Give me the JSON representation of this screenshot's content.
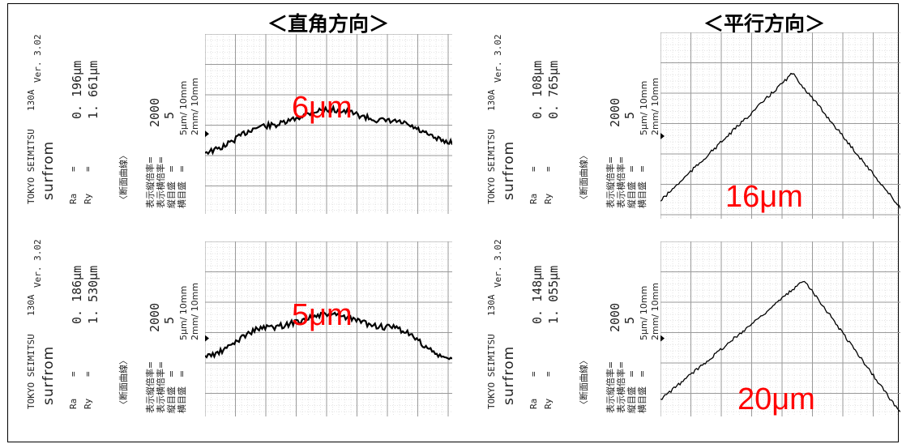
{
  "headings": {
    "left": "＜直角方向＞",
    "right": "＜平行方向＞"
  },
  "colors": {
    "annotation": "#ff0000",
    "grid": "#9a9a9a",
    "trace": "#000000"
  },
  "panels": [
    {
      "id": "perp-top",
      "header": {
        "maker": "TOKYO SEIMITSU",
        "model": "130A",
        "brand": "surfrom",
        "version": "Ver. 3.02"
      },
      "params": {
        "ra_label": "Ra",
        "ry_label": "Ry",
        "eq": "=",
        "ra_value": "0. 196μm",
        "ry_value": "1. 661μm"
      },
      "curve": {
        "title": "〈断面曲線〉",
        "vmag_label": "表示縦倍率=",
        "hmag_label": "表示横倍率=",
        "vscale_label": "縦目盛　=",
        "hscale_label": "横目盛　=",
        "vmag_value": "2000",
        "hmag_value": "5",
        "vscale_value": "5μm/ 10mm",
        "hscale_value": "2mm/ 10mm"
      },
      "annotation": "6μm",
      "chart_data": {
        "type": "line",
        "profile": "arch",
        "peak_height_um": 6,
        "x": [
          0,
          0.25,
          0.5,
          0.75,
          1.0
        ],
        "y": [
          0.35,
          0.75,
          1.0,
          0.82,
          0.5
        ]
      }
    },
    {
      "id": "par-top",
      "header": {
        "maker": "TOKYO SEIMITSU",
        "model": "130A",
        "brand": "surfrom",
        "version": "Ver. 3.02"
      },
      "params": {
        "ra_label": "Ra",
        "ry_label": "Ry",
        "eq": "=",
        "ra_value": "0. 108μm",
        "ry_value": "0. 765μm"
      },
      "curve": {
        "title": "〈断面曲線〉",
        "vmag_label": "表示縦倍率=",
        "hmag_label": "表示横倍率=",
        "vscale_label": "縦目盛　=",
        "hscale_label": "横目盛　=",
        "vmag_value": "2000",
        "hmag_value": "5",
        "vscale_value": "5μm/ 10mm",
        "hscale_value": "2mm/ 10mm"
      },
      "annotation": "16μm",
      "chart_data": {
        "type": "line",
        "profile": "triangle",
        "peak_height_um": 16,
        "x": [
          0,
          0.55,
          1.0
        ],
        "y": [
          0.1,
          1.0,
          0.05
        ]
      }
    },
    {
      "id": "perp-bottom",
      "header": {
        "maker": "TOKYO SEIMITSU",
        "model": "130A",
        "brand": "surfrom",
        "version": "Ver. 3.02"
      },
      "params": {
        "ra_label": "Ra",
        "ry_label": "Ry",
        "eq": "=",
        "ra_value": "0. 186μm",
        "ry_value": "1. 530μm"
      },
      "curve": {
        "title": "〈断面曲線〉",
        "vmag_label": "表示縦倍率=",
        "hmag_label": "表示横倍率=",
        "vscale_label": "縦目盛　=",
        "hscale_label": "横目盛　=",
        "vmag_value": "2000",
        "hmag_value": "5",
        "vscale_value": "5μm/ 10mm",
        "hscale_value": "2mm/ 10mm"
      },
      "annotation": "5μm",
      "chart_data": {
        "type": "line",
        "profile": "arch",
        "peak_height_um": 5,
        "x": [
          0,
          0.25,
          0.5,
          0.75,
          1.0
        ],
        "y": [
          0.35,
          0.8,
          1.0,
          0.8,
          0.3
        ]
      }
    },
    {
      "id": "par-bottom",
      "header": {
        "maker": "TOKYO SEIMITSU",
        "model": "130A",
        "brand": "surfrom",
        "version": "Ver. 3.02"
      },
      "params": {
        "ra_label": "Ra",
        "ry_label": "Ry",
        "eq": "=",
        "ra_value": "0. 148μm",
        "ry_value": "1. 055μm"
      },
      "curve": {
        "title": "〈断面曲線〉",
        "vmag_label": "表示縦倍率=",
        "hmag_label": "表示横倍率=",
        "vscale_label": "縦目盛　=",
        "hscale_label": "横目盛　=",
        "vmag_value": "2000",
        "hmag_value": "5",
        "vscale_value": "5μm/ 10mm",
        "hscale_value": "2mm/ 10mm"
      },
      "annotation": "20μm",
      "chart_data": {
        "type": "line",
        "profile": "triangle",
        "peak_height_um": 20,
        "x": [
          0,
          0.6,
          1.0
        ],
        "y": [
          0.1,
          1.0,
          0.0
        ]
      }
    }
  ]
}
